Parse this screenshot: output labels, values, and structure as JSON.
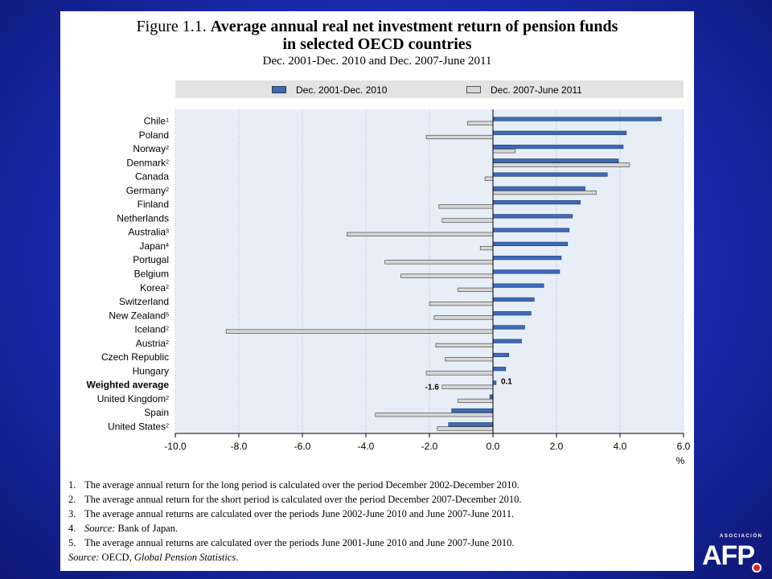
{
  "figure": {
    "number": "Figure 1.1.",
    "title_line1": "Average annual real net investment return of pension funds",
    "title_line2": "in selected OECD countries",
    "subtitle": "Dec. 2001-Dec. 2010 and Dec. 2007-June 2011"
  },
  "chart_data": {
    "type": "bar",
    "orientation": "horizontal",
    "categories": [
      "Chile",
      "Poland",
      "Norway",
      "Denmark",
      "Canada",
      "Germany",
      "Finland",
      "Netherlands",
      "Australia",
      "Japan",
      "Portugal",
      "Belgium",
      "Korea",
      "Switzerland",
      "New Zealand",
      "Iceland",
      "Austria",
      "Czech Republic",
      "Hungary",
      "Weighted average",
      "United Kingdom",
      "Spain",
      "United States"
    ],
    "category_notes": [
      "1",
      "",
      "2",
      "2",
      "",
      "2",
      "",
      "",
      "3",
      "4",
      "",
      "",
      "2",
      "",
      "5",
      "2",
      "2",
      "",
      "",
      "",
      "2",
      "",
      "2"
    ],
    "bold_categories": [
      "Weighted average"
    ],
    "series": [
      {
        "name": "Dec. 2001-Dec. 2010",
        "color": "#3d6bb8",
        "values": [
          5.3,
          4.2,
          4.1,
          3.95,
          3.6,
          2.9,
          2.75,
          2.5,
          2.4,
          2.35,
          2.15,
          2.1,
          1.6,
          1.3,
          1.2,
          1.0,
          0.9,
          0.5,
          0.4,
          0.1,
          -0.1,
          -1.3,
          -1.4
        ]
      },
      {
        "name": "Dec. 2007-June 2011",
        "color": "#d6d6d6",
        "values": [
          -0.8,
          -2.1,
          0.7,
          4.3,
          -0.25,
          3.25,
          -1.7,
          -1.6,
          -4.6,
          -0.4,
          -3.4,
          -2.9,
          -1.1,
          -2.0,
          -1.85,
          -8.4,
          -1.8,
          -1.5,
          -2.1,
          -1.6,
          -1.1,
          -3.7,
          -1.75
        ]
      }
    ],
    "data_labels": {
      "weighted_long": "0.1",
      "weighted_short": "-1.6"
    },
    "xlim": [
      -10.0,
      6.0
    ],
    "xticks": [
      "-10.0",
      "-8.0",
      "-6.0",
      "-4.0",
      "-2.0",
      "0.0",
      "2.0",
      "4.0",
      "6.0"
    ],
    "xlabel": "%",
    "grid": "dotted vertical",
    "legend_position": "top"
  },
  "notes": [
    {
      "num": "1.",
      "text": "The average annual return for the long period is calculated over the period December 2002-December 2010."
    },
    {
      "num": "2.",
      "text": "The average annual return for the short period is calculated over the period December 2007-December 2010."
    },
    {
      "num": "3.",
      "text": "The average annual returns are calculated over the periods June 2002-June 2010 and June 2007-June 2011."
    },
    {
      "num": "4.",
      "prefix": "Source:",
      "text": "Bank of Japan."
    },
    {
      "num": "5.",
      "text": "The average annual returns are calculated over the periods June 2001-June 2010 and June 2007-June 2010."
    }
  ],
  "source": {
    "prefix": "Source:",
    "org": "OECD, ",
    "title": "Global Pension Statistics",
    "end": "."
  },
  "logo": {
    "small_text": "ASOCIACIÓN",
    "big_text": "AFP"
  },
  "colors": {
    "background": "#1a2aae",
    "plot_bg": "#e8eef8",
    "long_bar": "#3d6bb8",
    "short_bar": "#d6d6d6"
  }
}
